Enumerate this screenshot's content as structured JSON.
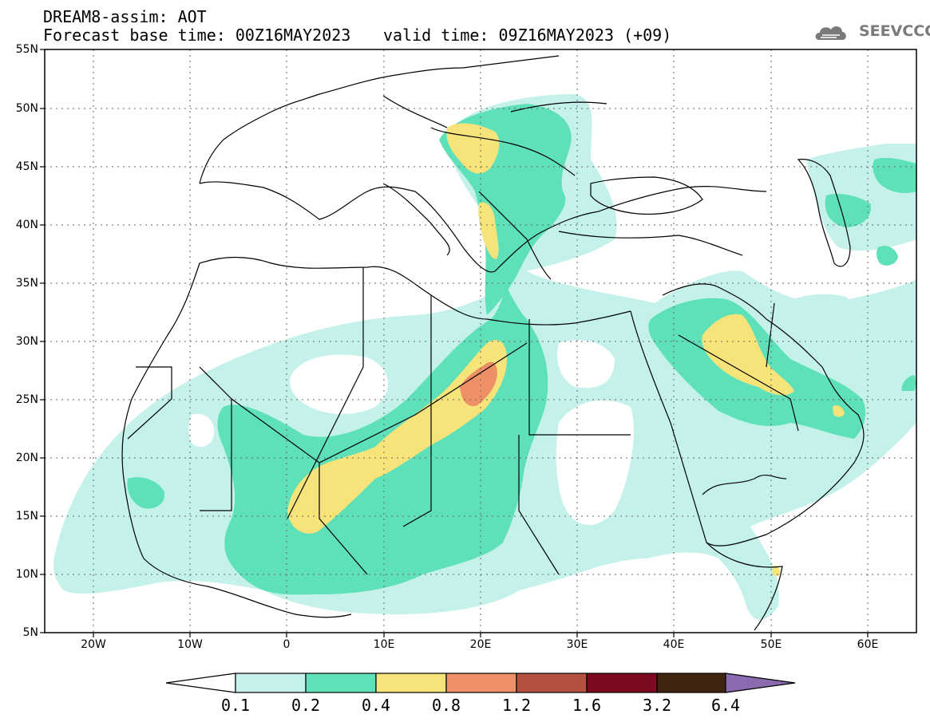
{
  "header": {
    "line1": "DREAM8-assim: AOT",
    "line2": "Forecast base time: 00Z16MAY2023",
    "valid": "valid time: 09Z16MAY2023 (+09)"
  },
  "logo": {
    "text": "SEEVCCC",
    "icon": "cloud-logo-icon",
    "color": "#7a7a7a"
  },
  "map": {
    "lon_range": [
      -25,
      65
    ],
    "lat_range": [
      5,
      55
    ],
    "lat_ticks": [
      "5N",
      "10N",
      "15N",
      "20N",
      "25N",
      "30N",
      "35N",
      "40N",
      "45N",
      "50N",
      "55N"
    ],
    "lon_ticks": [
      "20W",
      "10W",
      "0",
      "10E",
      "20E",
      "30E",
      "40E",
      "50E",
      "60E"
    ],
    "grid": "dotted"
  },
  "colorbar": {
    "labels": [
      "0.1",
      "0.2",
      "0.4",
      "0.8",
      "1.2",
      "1.6",
      "3.2",
      "6.4"
    ],
    "colors": [
      "#ffffff",
      "#c4f2ea",
      "#5ee0b8",
      "#f6e37a",
      "#ee9066",
      "#b45040",
      "#7e0a22",
      "#3f2612",
      "#8a6bb0"
    ]
  }
}
